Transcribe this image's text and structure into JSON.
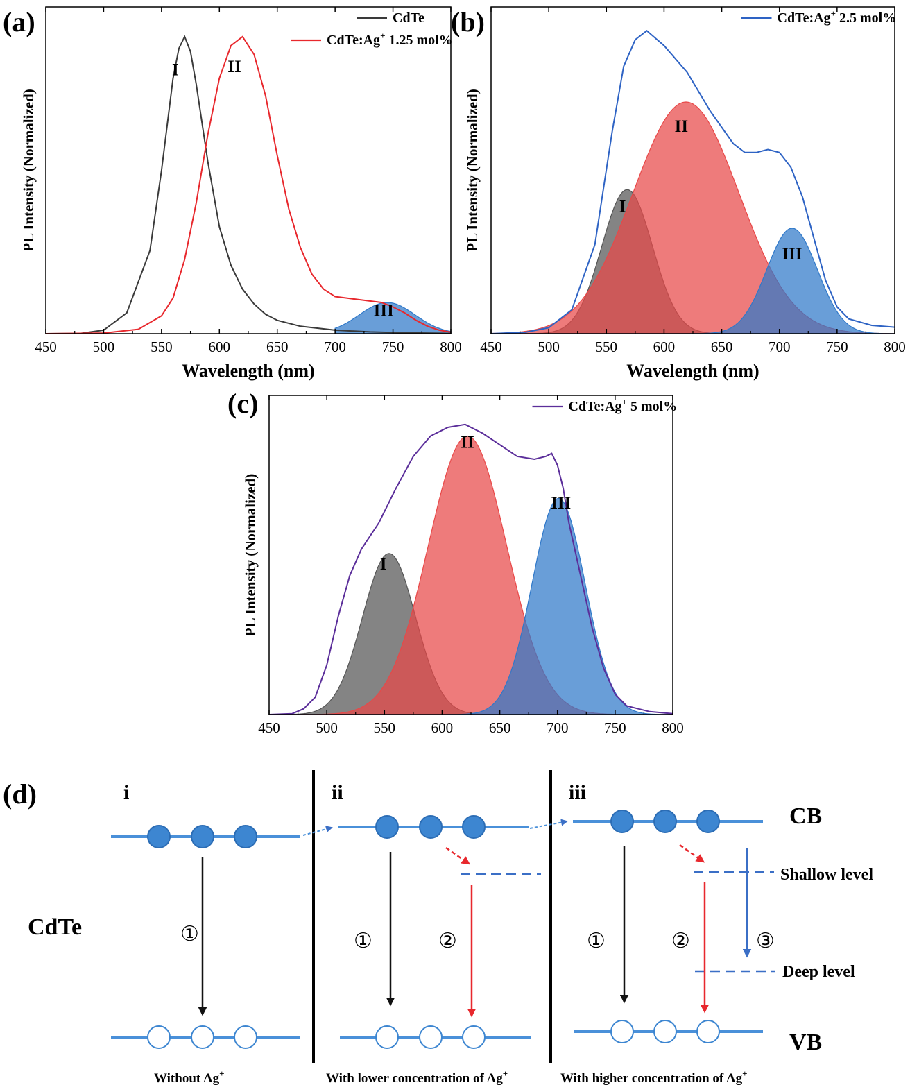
{
  "colors": {
    "cdte": "#3a3a3a",
    "ag125": "#e8282d",
    "ag25": "#2e63c4",
    "ag5": "#5b2e9a",
    "fill_I": "#555555",
    "fill_II": "#e84848",
    "fill_III": "#2f78c9",
    "band": "#4a90d9",
    "electron": "#3d86d1",
    "arrow_black": "#111111",
    "arrow_red": "#e8282d",
    "arrow_blue": "#3b6fc6"
  },
  "chart_data": [
    {
      "panel": "(a)",
      "type": "line",
      "xlabel": "Wavelength (nm)",
      "ylabel": "PL Intensity (Normalized)",
      "xlim": [
        450,
        800
      ],
      "ylim": [
        0,
        1.1
      ],
      "xticks": [
        "450",
        "500",
        "550",
        "600",
        "650",
        "700",
        "750",
        "800"
      ],
      "legend_position": "top-right",
      "series": [
        {
          "name": "CdTe",
          "color_key": "cdte",
          "x": [
            450,
            480,
            500,
            520,
            540,
            550,
            560,
            565,
            570,
            575,
            580,
            590,
            600,
            610,
            620,
            630,
            640,
            650,
            670,
            700,
            730,
            760,
            800
          ],
          "y": [
            0.0,
            0.001,
            0.012,
            0.07,
            0.28,
            0.55,
            0.86,
            0.96,
            1.0,
            0.95,
            0.84,
            0.58,
            0.36,
            0.23,
            0.15,
            0.1,
            0.065,
            0.045,
            0.025,
            0.012,
            0.006,
            0.003,
            0.001
          ]
        },
        {
          "name_main": "CdTe:Ag",
          "name_sup": "+",
          "name_tail": " 1.25 mol%",
          "color_key": "ag125",
          "x": [
            450,
            500,
            530,
            550,
            560,
            570,
            580,
            590,
            600,
            610,
            620,
            630,
            640,
            650,
            660,
            670,
            680,
            690,
            700,
            710,
            720,
            730,
            740,
            750,
            760,
            770,
            780,
            790,
            800
          ],
          "y": [
            0.0,
            0.002,
            0.015,
            0.06,
            0.12,
            0.25,
            0.44,
            0.67,
            0.86,
            0.97,
            1.0,
            0.94,
            0.8,
            0.6,
            0.42,
            0.29,
            0.2,
            0.15,
            0.125,
            0.12,
            0.115,
            0.11,
            0.105,
            0.09,
            0.07,
            0.045,
            0.025,
            0.012,
            0.005
          ]
        }
      ],
      "fills": [
        {
          "label": "III",
          "color_key": "fill_III",
          "center": 745,
          "sigma": 24,
          "amp": 0.105,
          "from": 700,
          "to": 800
        }
      ],
      "peak_labels": [
        {
          "text": "I",
          "x": 562,
          "y": 0.87
        },
        {
          "text": "II",
          "x": 613,
          "y": 0.88
        },
        {
          "text": "III",
          "x": 742,
          "y": 0.06
        }
      ]
    },
    {
      "panel": "(b)",
      "type": "line",
      "xlabel": "Wavelength (nm)",
      "ylabel": "PL Intensity (Normalized)",
      "xlim": [
        450,
        800
      ],
      "ylim": [
        0,
        1.1
      ],
      "xticks": [
        "450",
        "500",
        "550",
        "600",
        "650",
        "700",
        "750",
        "800"
      ],
      "legend_position": "top-right",
      "series": [
        {
          "name_main": "CdTe:Ag",
          "name_sup": "+",
          "name_tail": " 2.5 mol%",
          "color_key": "ag25",
          "x": [
            450,
            480,
            500,
            520,
            540,
            555,
            565,
            575,
            585,
            600,
            620,
            640,
            660,
            670,
            680,
            690,
            700,
            710,
            720,
            730,
            740,
            750,
            760,
            780,
            800
          ],
          "y": [
            0.0,
            0.005,
            0.02,
            0.08,
            0.3,
            0.68,
            0.9,
            0.99,
            1.02,
            0.97,
            0.88,
            0.75,
            0.64,
            0.61,
            0.61,
            0.62,
            0.61,
            0.56,
            0.46,
            0.32,
            0.18,
            0.09,
            0.05,
            0.028,
            0.022
          ]
        }
      ],
      "fills": [
        {
          "label": "I",
          "color_key": "fill_I",
          "center": 568,
          "sigma": 22,
          "amp": 0.485
        },
        {
          "label": "II",
          "color_key": "fill_II",
          "center": 619,
          "sigma": 46,
          "amp": 0.78
        },
        {
          "label": "III",
          "color_key": "fill_III",
          "center": 711,
          "sigma": 22,
          "amp": 0.355
        }
      ],
      "peak_labels": [
        {
          "text": "I",
          "x": 564,
          "y": 0.41
        },
        {
          "text": "II",
          "x": 615,
          "y": 0.68
        },
        {
          "text": "III",
          "x": 711,
          "y": 0.25
        }
      ]
    },
    {
      "panel": "(c)",
      "type": "line",
      "ylabel": "PL Intensity (Normalized)",
      "xlim": [
        450,
        800
      ],
      "ylim": [
        0,
        1.1
      ],
      "xticks": [
        "450",
        "500",
        "550",
        "600",
        "650",
        "700",
        "750",
        "800"
      ],
      "legend_position": "top-right",
      "series": [
        {
          "name_main": "CdTe:Ag",
          "name_sup": "+",
          "name_tail": " 5 mol%",
          "color_key": "ag5",
          "x": [
            450,
            470,
            480,
            490,
            500,
            510,
            520,
            530,
            545,
            560,
            575,
            590,
            605,
            620,
            635,
            650,
            665,
            680,
            690,
            695,
            700,
            705,
            710,
            720,
            730,
            740,
            750,
            760,
            780,
            800
          ],
          "y": [
            0.0,
            0.003,
            0.02,
            0.06,
            0.17,
            0.34,
            0.48,
            0.57,
            0.66,
            0.78,
            0.89,
            0.96,
            0.99,
            1.0,
            0.97,
            0.93,
            0.89,
            0.88,
            0.89,
            0.9,
            0.86,
            0.78,
            0.66,
            0.48,
            0.3,
            0.16,
            0.07,
            0.03,
            0.01,
            0.003
          ]
        }
      ],
      "fills": [
        {
          "label": "I",
          "color_key": "fill_I",
          "center": 554,
          "sigma": 23,
          "amp": 0.555
        },
        {
          "label": "II",
          "color_key": "fill_II",
          "center": 622,
          "sigma": 34,
          "amp": 0.96
        },
        {
          "label": "III",
          "color_key": "fill_III",
          "center": 701,
          "sigma": 23,
          "amp": 0.745
        }
      ],
      "peak_labels": [
        {
          "text": "I",
          "x": 549,
          "y": 0.5
        },
        {
          "text": "II",
          "x": 622,
          "y": 0.92
        },
        {
          "text": "III",
          "x": 703,
          "y": 0.71
        }
      ]
    }
  ],
  "panel_letters": [
    "(a)",
    "(b)",
    "(c)",
    "(d)"
  ],
  "diagram": {
    "cdte_label": "CdTe",
    "sections": [
      {
        "roman": "i",
        "marks": [
          "①"
        ],
        "caption_main": "Without  Ag",
        "caption_sup": "+"
      },
      {
        "roman": "ii",
        "marks": [
          "①",
          "②"
        ],
        "caption_main": "With lower concentration  of Ag",
        "caption_sup": "+"
      },
      {
        "roman": "iii",
        "marks": [
          "①",
          "②",
          "③"
        ],
        "caption_main": "With higher concentration  of Ag",
        "caption_sup": "+"
      }
    ],
    "cb_label": "CB",
    "vb_label": "VB",
    "shallow_label": "Shallow level",
    "deep_label": "Deep level"
  }
}
